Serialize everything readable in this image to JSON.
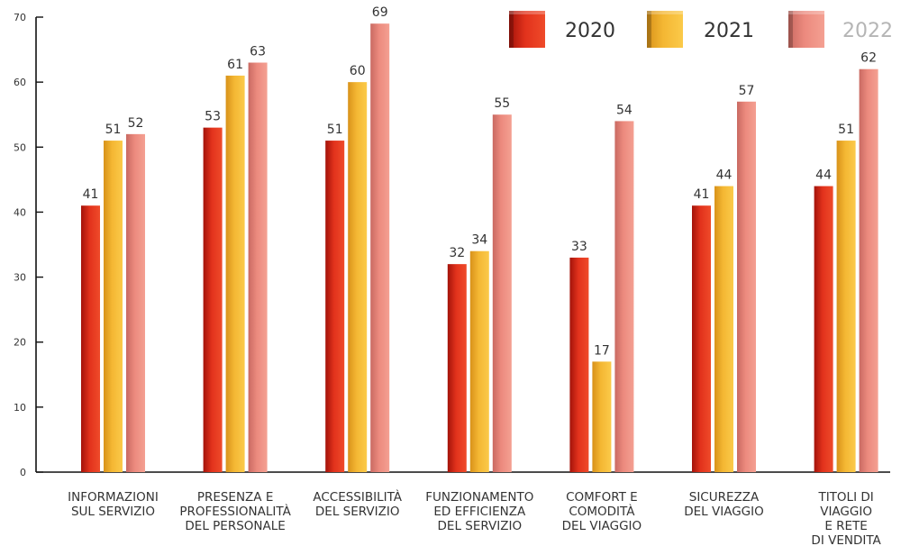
{
  "chart_data": {
    "type": "bar",
    "categories": [
      [
        "INFORMAZIONI",
        "SUL SERVIZIO"
      ],
      [
        "PRESENZA E",
        "PROFESSIONALITÀ",
        "DEL PERSONALE"
      ],
      [
        "ACCESSIBILITÀ",
        "DEL SERVIZIO"
      ],
      [
        "FUNZIONAMENTO",
        "ED EFFICIENZA",
        "DEL SERVIZIO"
      ],
      [
        "COMFORT E",
        "COMODITÀ",
        "DEL VIAGGIO"
      ],
      [
        "SICUREZZA",
        "DEL VIAGGIO"
      ],
      [
        "TITOLI DI",
        "VIAGGIO",
        "E RETE",
        "DI VENDITA"
      ]
    ],
    "series": [
      {
        "name": "2020",
        "values": [
          41,
          53,
          51,
          32,
          33,
          41,
          44
        ],
        "color": "#e2321c",
        "text_color": "#333333"
      },
      {
        "name": "2021",
        "values": [
          51,
          61,
          60,
          34,
          17,
          44,
          51
        ],
        "color": "#f3b833",
        "text_color": "#333333"
      },
      {
        "name": "2022",
        "values": [
          52,
          63,
          69,
          55,
          54,
          57,
          62
        ],
        "color": "#ec8a7e",
        "text_color": "#b5b5b5"
      }
    ],
    "ylim": [
      0,
      70
    ],
    "yticks": [
      0,
      10,
      20,
      30,
      40,
      50,
      60,
      70
    ],
    "legend_position": "top-right",
    "grid": false
  }
}
